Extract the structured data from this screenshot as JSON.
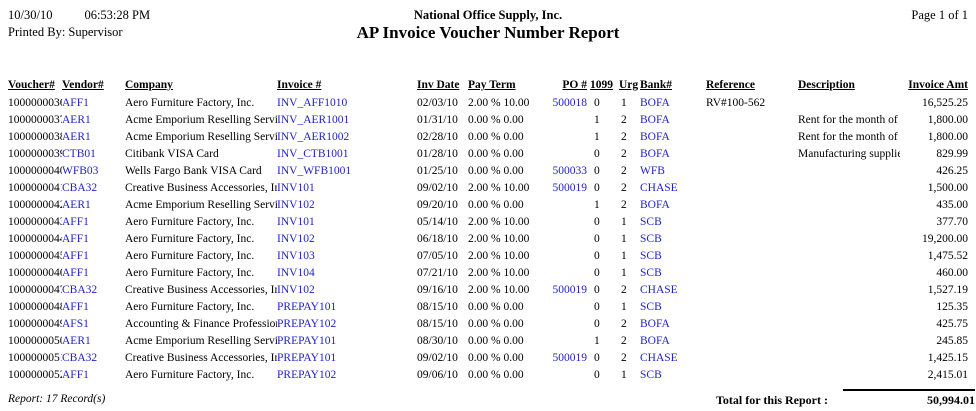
{
  "header": {
    "date": "10/30/10",
    "time": "06:53:28 PM",
    "company": "National Office Supply, Inc.",
    "page_label": "Page 1 of 1",
    "printed_by": "Printed By: Supervisor",
    "title": "AP Invoice Voucher Number Report"
  },
  "table": {
    "columns": [
      "Voucher#",
      "Vendor#",
      "Company",
      "Invoice #",
      "Inv Date",
      "Pay Term",
      "PO #",
      "1099",
      "Urg",
      "Bank#",
      "Reference",
      "Description",
      "Invoice Amt"
    ],
    "rows": [
      {
        "voucher": "1000000036",
        "vendor": "AFF1",
        "company": "Aero Furniture Factory, Inc.",
        "invoice": "INV_AFF1010",
        "inv_date": "02/03/10",
        "pay_term": "2.00 % 10.00",
        "po": "500018",
        "f1099": "0",
        "urg": "1",
        "bank": "BOFA",
        "reference": "RV#100-562",
        "description": "",
        "amount": "16,525.25"
      },
      {
        "voucher": "1000000037",
        "vendor": "AER1",
        "company": "Acme Emporium Reselling Servic",
        "invoice": "INV_AER1001",
        "inv_date": "01/31/10",
        "pay_term": "0.00 % 0.00",
        "po": "",
        "f1099": "1",
        "urg": "2",
        "bank": "BOFA",
        "reference": "",
        "description": "Rent for the month of Ja",
        "amount": "1,800.00"
      },
      {
        "voucher": "1000000038",
        "vendor": "AER1",
        "company": "Acme Emporium Reselling Servic",
        "invoice": "INV_AER1002",
        "inv_date": "02/28/10",
        "pay_term": "0.00 % 0.00",
        "po": "",
        "f1099": "1",
        "urg": "2",
        "bank": "BOFA",
        "reference": "",
        "description": "Rent for the month of F",
        "amount": "1,800.00"
      },
      {
        "voucher": "1000000039",
        "vendor": "CTB01",
        "company": "Citibank VISA Card",
        "invoice": "INV_CTB1001",
        "inv_date": "01/28/10",
        "pay_term": "0.00 % 0.00",
        "po": "",
        "f1099": "0",
        "urg": "2",
        "bank": "BOFA",
        "reference": "",
        "description": "Manufacturing supplies",
        "amount": "829.99"
      },
      {
        "voucher": "1000000040",
        "vendor": "WFB03",
        "company": "Wells Fargo Bank VISA Card",
        "invoice": "INV_WFB1001",
        "inv_date": "01/25/10",
        "pay_term": "0.00 % 0.00",
        "po": "500033",
        "f1099": "0",
        "urg": "2",
        "bank": "WFB",
        "reference": "",
        "description": "",
        "amount": "426.25"
      },
      {
        "voucher": "1000000041",
        "vendor": "CBA32",
        "company": "Creative Business Accessories, In",
        "invoice": "INV101",
        "inv_date": "09/02/10",
        "pay_term": "2.00 % 10.00",
        "po": "500019",
        "f1099": "0",
        "urg": "2",
        "bank": "CHASE",
        "reference": "",
        "description": "",
        "amount": "1,500.00"
      },
      {
        "voucher": "1000000042",
        "vendor": "AER1",
        "company": "Acme Emporium Reselling Servic",
        "invoice": "INV102",
        "inv_date": "09/20/10",
        "pay_term": "0.00 % 0.00",
        "po": "",
        "f1099": "1",
        "urg": "2",
        "bank": "BOFA",
        "reference": "",
        "description": "",
        "amount": "435.00"
      },
      {
        "voucher": "1000000043",
        "vendor": "AFF1",
        "company": "Aero Furniture Factory, Inc.",
        "invoice": "INV101",
        "inv_date": "05/14/10",
        "pay_term": "2.00 % 10.00",
        "po": "",
        "f1099": "0",
        "urg": "1",
        "bank": "SCB",
        "reference": "",
        "description": "",
        "amount": "377.70"
      },
      {
        "voucher": "1000000044",
        "vendor": "AFF1",
        "company": "Aero Furniture Factory, Inc.",
        "invoice": "INV102",
        "inv_date": "06/18/10",
        "pay_term": "2.00 % 10.00",
        "po": "",
        "f1099": "0",
        "urg": "1",
        "bank": "SCB",
        "reference": "",
        "description": "",
        "amount": "19,200.00"
      },
      {
        "voucher": "1000000045",
        "vendor": "AFF1",
        "company": "Aero Furniture Factory, Inc.",
        "invoice": "INV103",
        "inv_date": "07/05/10",
        "pay_term": "2.00 % 10.00",
        "po": "",
        "f1099": "0",
        "urg": "1",
        "bank": "SCB",
        "reference": "",
        "description": "",
        "amount": "1,475.52"
      },
      {
        "voucher": "1000000046",
        "vendor": "AFF1",
        "company": "Aero Furniture Factory, Inc.",
        "invoice": "INV104",
        "inv_date": "07/21/10",
        "pay_term": "2.00 % 10.00",
        "po": "",
        "f1099": "0",
        "urg": "1",
        "bank": "SCB",
        "reference": "",
        "description": "",
        "amount": "460.00"
      },
      {
        "voucher": "1000000047",
        "vendor": "CBA32",
        "company": "Creative Business Accessories, In",
        "invoice": "INV102",
        "inv_date": "09/16/10",
        "pay_term": "2.00 % 10.00",
        "po": "500019",
        "f1099": "0",
        "urg": "2",
        "bank": "CHASE",
        "reference": "",
        "description": "",
        "amount": "1,527.19"
      },
      {
        "voucher": "1000000048",
        "vendor": "AFF1",
        "company": "Aero Furniture Factory, Inc.",
        "invoice": "PREPAY101",
        "inv_date": "08/15/10",
        "pay_term": "0.00 % 0.00",
        "po": "",
        "f1099": "0",
        "urg": "1",
        "bank": "SCB",
        "reference": "",
        "description": "",
        "amount": "125.35"
      },
      {
        "voucher": "1000000049",
        "vendor": "AFS1",
        "company": "Accounting & Finance Profession",
        "invoice": "PREPAY102",
        "inv_date": "08/15/10",
        "pay_term": "0.00 % 0.00",
        "po": "",
        "f1099": "0",
        "urg": "2",
        "bank": "BOFA",
        "reference": "",
        "description": "",
        "amount": "425.75"
      },
      {
        "voucher": "1000000050",
        "vendor": "AER1",
        "company": "Acme Emporium Reselling Servic",
        "invoice": "PREPAY101",
        "inv_date": "08/30/10",
        "pay_term": "0.00 % 0.00",
        "po": "",
        "f1099": "1",
        "urg": "2",
        "bank": "BOFA",
        "reference": "",
        "description": "",
        "amount": "245.85"
      },
      {
        "voucher": "1000000051",
        "vendor": "CBA32",
        "company": "Creative Business Accessories, In",
        "invoice": "PREPAY101",
        "inv_date": "09/02/10",
        "pay_term": "0.00 % 0.00",
        "po": "500019",
        "f1099": "0",
        "urg": "2",
        "bank": "CHASE",
        "reference": "",
        "description": "",
        "amount": "1,425.15"
      },
      {
        "voucher": "1000000052",
        "vendor": "AFF1",
        "company": "Aero Furniture Factory, Inc.",
        "invoice": "PREPAY102",
        "inv_date": "09/06/10",
        "pay_term": "0.00 % 0.00",
        "po": "",
        "f1099": "0",
        "urg": "1",
        "bank": "SCB",
        "reference": "",
        "description": "",
        "amount": "2,415.01"
      }
    ]
  },
  "footer": {
    "record_count": "Report: 17 Record(s)",
    "total_label": "Total for this Report :",
    "total_amount": "50,994.01"
  },
  "colors": {
    "link_blue": "#2222CC",
    "text": "#000000"
  }
}
